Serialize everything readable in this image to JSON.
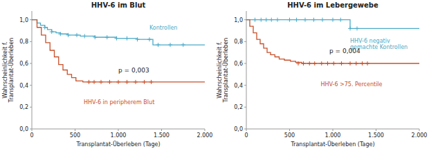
{
  "chart_data": [
    {
      "type": "step",
      "title": "HHV-6 im Blut",
      "xlabel": "Transplantat-Überleben (Tage)",
      "ylabel": "Wahrscheinlichkeit f.\nTransplantat-Überleben",
      "xlim": [
        0,
        2000
      ],
      "ylim": [
        0.0,
        1.08
      ],
      "xticks": [
        0,
        500,
        {
          "value": 1000,
          "label": "1.000"
        },
        {
          "value": 1500,
          "label": "1.500"
        },
        {
          "value": 2000,
          "label": "2.000"
        }
      ],
      "yticks": [
        {
          "value": 0.0,
          "label": "0,0"
        },
        {
          "value": 0.2,
          "label": "0,2"
        },
        {
          "value": 0.4,
          "label": "0,4"
        },
        {
          "value": 0.6,
          "label": "0,6"
        },
        {
          "value": 0.8,
          "label": "0,8"
        },
        {
          "value": 1.0,
          "label": "1,0"
        }
      ],
      "series": [
        {
          "name": "Kontrollen",
          "color": "#4aaac8",
          "x": [
            0,
            60,
            100,
            150,
            180,
            230,
            280,
            330,
            380,
            420,
            470,
            520,
            560,
            610,
            680,
            730,
            800,
            870,
            930,
            980,
            1050,
            1100,
            1160,
            1220,
            1290,
            1360,
            1400,
            1460,
            1530,
            1600,
            1680,
            1750,
            2000
          ],
          "values": [
            1.0,
            0.97,
            0.95,
            0.93,
            0.91,
            0.89,
            0.88,
            0.87,
            0.87,
            0.86,
            0.86,
            0.86,
            0.85,
            0.85,
            0.85,
            0.84,
            0.84,
            0.84,
            0.84,
            0.83,
            0.83,
            0.83,
            0.83,
            0.82,
            0.82,
            0.82,
            0.77,
            0.77,
            0.77,
            0.77,
            0.77,
            0.77,
            0.77
          ]
        },
        {
          "name": "HHV-6 in peripherem Blut",
          "color": "#c8502a",
          "x": [
            0,
            60,
            110,
            160,
            210,
            260,
            310,
            360,
            410,
            460,
            510,
            590,
            650,
            2000
          ],
          "values": [
            1.0,
            0.93,
            0.86,
            0.79,
            0.72,
            0.66,
            0.59,
            0.54,
            0.5,
            0.47,
            0.44,
            0.43,
            0.43,
            0.43
          ]
        },
        {
          "type": "scatter",
          "marker": "plus",
          "color": "#4aaac8",
          "x": [
            150,
            230,
            330,
            420,
            520,
            610,
            730,
            870,
            980,
            1100,
            1220,
            1360,
            1460,
            1600,
            1750
          ],
          "values": [
            0.93,
            0.89,
            0.87,
            0.86,
            0.86,
            0.85,
            0.84,
            0.84,
            0.83,
            0.83,
            0.82,
            0.82,
            0.77,
            0.77,
            0.77
          ]
        },
        {
          "type": "scatter",
          "marker": "plus",
          "color": "#c8502a",
          "x": [
            660,
            720,
            800,
            900,
            1000,
            1100,
            1200,
            1300,
            1380
          ],
          "values": [
            0.43,
            0.43,
            0.43,
            0.43,
            0.43,
            0.43,
            0.43,
            0.43,
            0.43
          ]
        }
      ],
      "annotations": [
        {
          "text": "p = 0,003"
        }
      ]
    },
    {
      "type": "step",
      "title": "HHV-6 im Lebergewebe",
      "xlabel": "Transplantat-Überleben (Tage)",
      "ylabel": "Wahrscheinlichkeit f.\nTransplantat-Überleben",
      "xlim": [
        0,
        2000
      ],
      "ylim": [
        0.0,
        1.08
      ],
      "xticks": [
        0,
        500,
        {
          "value": 1000,
          "label": "1.000"
        },
        {
          "value": 1500,
          "label": "1.500"
        },
        {
          "value": 2000,
          "label": "2.000"
        }
      ],
      "yticks": [
        {
          "value": 0.0,
          "label": "0,0"
        },
        {
          "value": 0.2,
          "label": "0,2"
        },
        {
          "value": 0.4,
          "label": "0,4"
        },
        {
          "value": 0.6,
          "label": "0,6"
        },
        {
          "value": 0.8,
          "label": "0,8"
        },
        {
          "value": 1.0,
          "label": "1,0"
        }
      ],
      "series": [
        {
          "name": "HHV-6 negativ\ngemachte Kontrollen",
          "color": "#4aaac8",
          "x": [
            0,
            100,
            200,
            300,
            400,
            500,
            600,
            700,
            800,
            900,
            1000,
            1100,
            1150,
            1200,
            1300,
            2000
          ],
          "values": [
            1.0,
            1.0,
            1.0,
            1.0,
            1.0,
            1.0,
            1.0,
            1.0,
            1.0,
            1.0,
            1.0,
            1.0,
            1.0,
            0.92,
            0.92,
            0.92
          ]
        },
        {
          "name": "HHV-6 >75. Percentile",
          "color": "#c8502a",
          "x": [
            0,
            40,
            80,
            120,
            160,
            200,
            240,
            280,
            330,
            380,
            440,
            510,
            570,
            640,
            700,
            2000
          ],
          "values": [
            1.0,
            0.94,
            0.88,
            0.82,
            0.78,
            0.74,
            0.7,
            0.68,
            0.66,
            0.64,
            0.63,
            0.62,
            0.61,
            0.6,
            0.6,
            0.6
          ]
        },
        {
          "type": "scatter",
          "marker": "plus",
          "color": "#4aaac8",
          "x": [
            100,
            170,
            230,
            290,
            360,
            500,
            580,
            680,
            780,
            880,
            1000,
            1090,
            1200,
            1280
          ],
          "values": [
            1.0,
            1.0,
            1.0,
            1.0,
            1.0,
            1.0,
            1.0,
            1.0,
            1.0,
            1.0,
            1.0,
            1.0,
            0.92,
            0.92
          ]
        },
        {
          "type": "scatter",
          "marker": "plus",
          "color": "#c8502a",
          "x": [
            600,
            660,
            730,
            790,
            870,
            940,
            1010,
            1100,
            1200,
            1270,
            1340,
            1400
          ],
          "values": [
            0.6,
            0.6,
            0.6,
            0.6,
            0.6,
            0.6,
            0.6,
            0.6,
            0.6,
            0.6,
            0.6,
            0.6
          ]
        }
      ],
      "annotations": [
        {
          "text": "p = 0,004"
        }
      ]
    }
  ]
}
